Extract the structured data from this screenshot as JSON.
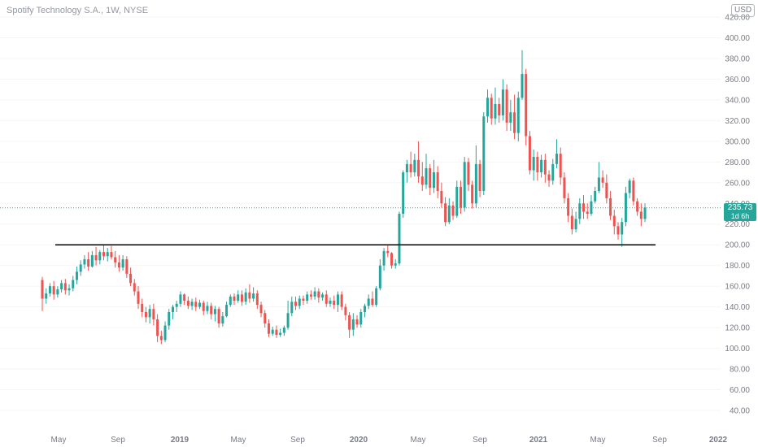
{
  "header": {
    "symbol_title": "Spotify Technology S.A., 1W, NYSE",
    "currency": "USD"
  },
  "price_tag": {
    "price": "235.73",
    "countdown": "1d 6h"
  },
  "colors": {
    "up": "#26a69a",
    "down": "#ef5350",
    "support_line": "#000000",
    "last_price_line": "#26a69a"
  },
  "chart_data": {
    "type": "candlestick",
    "title": "Spotify Technology S.A., 1W, NYSE",
    "ylim": [
      40,
      420
    ],
    "y_ticks": [
      "40.00",
      "60.00",
      "80.00",
      "100.00",
      "120.00",
      "140.00",
      "160.00",
      "180.00",
      "200.00",
      "220.00",
      "240.00",
      "260.00",
      "280.00",
      "300.00",
      "320.00",
      "340.00",
      "360.00",
      "380.00",
      "400.00",
      "420.00"
    ],
    "x_labels": [
      "May",
      "Sep",
      "2019",
      "May",
      "Sep",
      "2020",
      "May",
      "Sep",
      "2021",
      "May",
      "Sep",
      "2022"
    ],
    "support_level": 200,
    "last_price": 235.73,
    "candles": [
      [
        166,
        148,
        169,
        136
      ],
      [
        148,
        153,
        158,
        143
      ],
      [
        153,
        160,
        163,
        150
      ],
      [
        160,
        152,
        165,
        147
      ],
      [
        152,
        157,
        160,
        149
      ],
      [
        157,
        163,
        166,
        154
      ],
      [
        163,
        156,
        167,
        152
      ],
      [
        156,
        158,
        162,
        151
      ],
      [
        158,
        166,
        170,
        155
      ],
      [
        166,
        174,
        179,
        162
      ],
      [
        174,
        181,
        185,
        170
      ],
      [
        181,
        186,
        190,
        177
      ],
      [
        186,
        179,
        193,
        175
      ],
      [
        179,
        190,
        194,
        178
      ],
      [
        190,
        185,
        198,
        180
      ],
      [
        185,
        193,
        195,
        181
      ],
      [
        193,
        189,
        200,
        185
      ],
      [
        189,
        193,
        197,
        184
      ],
      [
        193,
        188,
        199,
        186
      ],
      [
        188,
        183,
        194,
        178
      ],
      [
        183,
        178,
        190,
        174
      ],
      [
        178,
        186,
        190,
        175
      ],
      [
        186,
        172,
        189,
        168
      ],
      [
        172,
        163,
        178,
        160
      ],
      [
        163,
        155,
        167,
        151
      ],
      [
        155,
        143,
        160,
        138
      ],
      [
        143,
        135,
        148,
        130
      ],
      [
        135,
        130,
        140,
        125
      ],
      [
        130,
        138,
        142,
        124
      ],
      [
        138,
        128,
        143,
        122
      ],
      [
        128,
        112,
        133,
        106
      ],
      [
        112,
        108,
        117,
        104
      ],
      [
        108,
        122,
        126,
        106
      ],
      [
        122,
        135,
        138,
        118
      ],
      [
        135,
        140,
        142,
        128
      ],
      [
        140,
        143,
        146,
        135
      ],
      [
        143,
        152,
        155,
        140
      ],
      [
        152,
        146,
        153,
        142
      ],
      [
        146,
        141,
        150,
        138
      ],
      [
        141,
        145,
        148,
        137
      ],
      [
        145,
        140,
        149,
        136
      ],
      [
        140,
        144,
        147,
        138
      ],
      [
        144,
        136,
        146,
        132
      ],
      [
        136,
        141,
        145,
        133
      ],
      [
        141,
        133,
        144,
        128
      ],
      [
        133,
        138,
        141,
        126
      ],
      [
        138,
        124,
        140,
        120
      ],
      [
        124,
        131,
        135,
        121
      ],
      [
        131,
        142,
        145,
        130
      ],
      [
        142,
        150,
        152,
        140
      ],
      [
        150,
        146,
        153,
        142
      ],
      [
        146,
        152,
        156,
        144
      ],
      [
        152,
        145,
        156,
        141
      ],
      [
        145,
        154,
        158,
        142
      ],
      [
        154,
        148,
        162,
        144
      ],
      [
        148,
        153,
        159,
        145
      ],
      [
        153,
        142,
        156,
        138
      ],
      [
        142,
        134,
        145,
        130
      ],
      [
        134,
        124,
        137,
        120
      ],
      [
        124,
        114,
        128,
        111
      ],
      [
        114,
        118,
        121,
        112
      ],
      [
        118,
        113,
        122,
        110
      ],
      [
        113,
        115,
        119,
        111
      ],
      [
        115,
        120,
        122,
        112
      ],
      [
        120,
        134,
        146,
        118
      ],
      [
        134,
        145,
        150,
        131
      ],
      [
        145,
        141,
        150,
        137
      ],
      [
        141,
        148,
        151,
        138
      ],
      [
        148,
        146,
        151,
        142
      ],
      [
        146,
        152,
        155,
        143
      ],
      [
        152,
        150,
        156,
        147
      ],
      [
        150,
        155,
        159,
        147
      ],
      [
        155,
        149,
        158,
        144
      ],
      [
        149,
        152,
        154,
        146
      ],
      [
        152,
        143,
        156,
        140
      ],
      [
        143,
        146,
        149,
        140
      ],
      [
        146,
        142,
        151,
        138
      ],
      [
        142,
        152,
        155,
        135
      ],
      [
        152,
        140,
        155,
        137
      ],
      [
        140,
        132,
        143,
        127
      ],
      [
        132,
        118,
        135,
        110
      ],
      [
        118,
        128,
        134,
        112
      ],
      [
        128,
        123,
        132,
        120
      ],
      [
        123,
        135,
        138,
        120
      ],
      [
        135,
        141,
        143,
        130
      ],
      [
        141,
        148,
        152,
        138
      ],
      [
        148,
        142,
        155,
        140
      ],
      [
        142,
        158,
        160,
        140
      ],
      [
        158,
        180,
        186,
        156
      ],
      [
        180,
        194,
        197,
        175
      ],
      [
        194,
        192,
        200,
        188
      ],
      [
        192,
        180,
        193,
        177
      ],
      [
        180,
        182,
        186,
        177
      ],
      [
        182,
        230,
        232,
        180
      ],
      [
        230,
        270,
        272,
        226
      ],
      [
        270,
        278,
        282,
        260
      ],
      [
        278,
        270,
        290,
        265
      ],
      [
        270,
        282,
        288,
        266
      ],
      [
        282,
        266,
        300,
        260
      ],
      [
        266,
        258,
        280,
        252
      ],
      [
        258,
        274,
        288,
        254
      ],
      [
        274,
        255,
        278,
        248
      ],
      [
        255,
        270,
        282,
        250
      ],
      [
        270,
        252,
        276,
        245
      ],
      [
        252,
        240,
        260,
        236
      ],
      [
        240,
        222,
        246,
        218
      ],
      [
        222,
        238,
        245,
        220
      ],
      [
        238,
        228,
        242,
        224
      ],
      [
        228,
        256,
        262,
        226
      ],
      [
        256,
        236,
        262,
        230
      ],
      [
        236,
        280,
        285,
        232
      ],
      [
        280,
        258,
        284,
        252
      ],
      [
        258,
        240,
        262,
        235
      ],
      [
        240,
        278,
        296,
        236
      ],
      [
        278,
        252,
        282,
        246
      ],
      [
        252,
        324,
        328,
        248
      ],
      [
        324,
        342,
        350,
        318
      ],
      [
        342,
        322,
        346,
        316
      ],
      [
        322,
        336,
        352,
        316
      ],
      [
        336,
        325,
        342,
        318
      ],
      [
        325,
        350,
        360,
        320
      ],
      [
        350,
        318,
        355,
        310
      ],
      [
        318,
        328,
        340,
        310
      ],
      [
        328,
        308,
        345,
        302
      ],
      [
        308,
        342,
        348,
        300
      ],
      [
        342,
        365,
        388,
        340
      ],
      [
        365,
        305,
        370,
        296
      ],
      [
        305,
        272,
        310,
        268
      ],
      [
        272,
        285,
        292,
        262
      ],
      [
        285,
        270,
        290,
        262
      ],
      [
        270,
        282,
        287,
        265
      ],
      [
        282,
        268,
        288,
        260
      ],
      [
        268,
        262,
        272,
        256
      ],
      [
        262,
        278,
        283,
        258
      ],
      [
        278,
        288,
        302,
        274
      ],
      [
        288,
        265,
        294,
        258
      ],
      [
        265,
        245,
        270,
        240
      ],
      [
        245,
        228,
        250,
        222
      ],
      [
        228,
        215,
        235,
        210
      ],
      [
        215,
        225,
        232,
        212
      ],
      [
        225,
        240,
        245,
        220
      ],
      [
        240,
        232,
        248,
        225
      ],
      [
        232,
        230,
        240,
        225
      ],
      [
        230,
        242,
        248,
        228
      ],
      [
        242,
        252,
        256,
        240
      ],
      [
        252,
        265,
        280,
        250
      ],
      [
        265,
        260,
        272,
        255
      ],
      [
        260,
        245,
        268,
        240
      ],
      [
        245,
        228,
        252,
        224
      ],
      [
        228,
        218,
        234,
        210
      ],
      [
        218,
        210,
        222,
        205
      ],
      [
        210,
        222,
        226,
        198
      ],
      [
        222,
        250,
        256,
        218
      ],
      [
        250,
        262,
        264,
        245
      ],
      [
        262,
        242,
        265,
        238
      ],
      [
        242,
        232,
        245,
        228
      ],
      [
        232,
        225,
        240,
        218
      ],
      [
        225,
        236,
        240,
        222
      ]
    ]
  }
}
